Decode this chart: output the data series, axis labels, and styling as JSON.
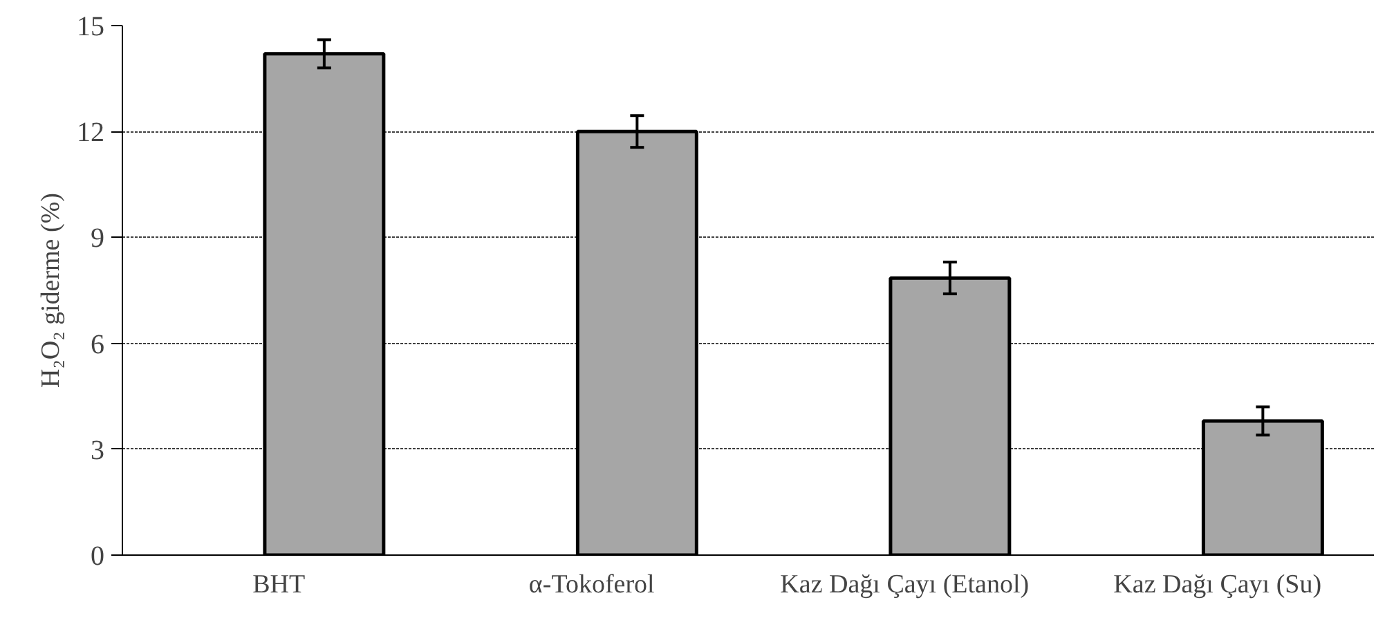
{
  "chart_data": {
    "type": "bar",
    "ylabel": "H₂O₂ giderme (%)",
    "categories": [
      "BHT",
      "α-Tokoferol",
      "Kaz Dağı Çayı (Etanol)",
      "Kaz Dağı Çayı (Su)"
    ],
    "values": [
      14.2,
      12.0,
      7.85,
      3.8
    ],
    "errors": [
      0.4,
      0.45,
      0.45,
      0.4
    ],
    "color": "#a6a6a6",
    "ylim": [
      0,
      15
    ],
    "yticks": [
      0,
      3,
      6,
      9,
      12,
      15
    ],
    "grid": "y"
  }
}
